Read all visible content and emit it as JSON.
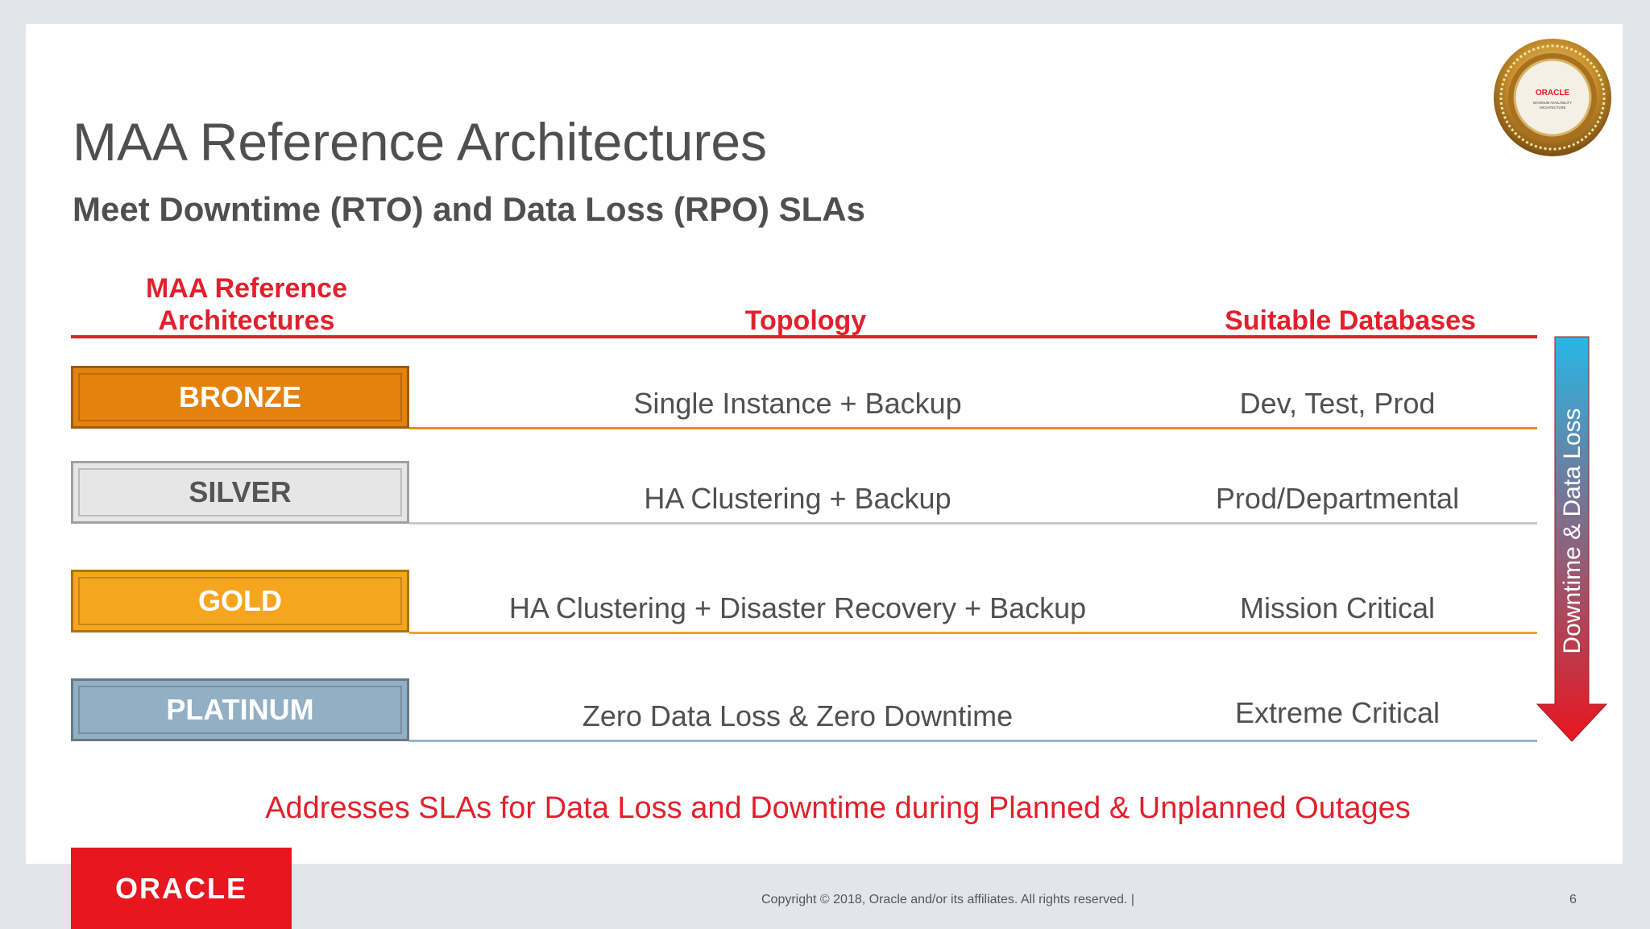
{
  "slide": {
    "title": "MAA Reference Architectures",
    "subtitle": "Meet Downtime (RTO) and Data Loss (RPO) SLAs"
  },
  "badge": {
    "icon": "maa-seal-icon",
    "brand": "ORACLE",
    "line1": "MAXIMUM AVAILABILITY",
    "line2": "ARCHITECTURE"
  },
  "table": {
    "headers": {
      "tier_line1": "MAA Reference",
      "tier_line2": "Architectures",
      "topology": "Topology",
      "databases": "Suitable Databases"
    },
    "rows": [
      {
        "tier": "BRONZE",
        "topology": "Single Instance + Backup",
        "databases": "Dev, Test, Prod",
        "color": "#e4820f",
        "line_color": "#e4960f"
      },
      {
        "tier": "SILVER",
        "topology": "HA Clustering + Backup",
        "databases": "Prod/Departmental",
        "color": "#e6e6e6",
        "line_color": "#c9c9c9"
      },
      {
        "tier": "GOLD",
        "topology": "HA Clustering + Disaster Recovery + Backup",
        "databases": "Mission Critical",
        "color": "#f6a51e",
        "line_color": "#f0a623"
      },
      {
        "tier": "PLATINUM",
        "topology": "Zero Data Loss & Zero Downtime",
        "databases": "Extreme Critical",
        "color": "#93afc4",
        "line_color": "#9cb3c3"
      }
    ]
  },
  "arrow": {
    "label": "Downtime & Data Loss",
    "top_color": "#29b6e6",
    "bottom_color": "#e8161e"
  },
  "footer": {
    "note": "Addresses SLAs for Data Loss and Downtime during Planned & Unplanned Outages",
    "logo": "ORACLE",
    "copyright": "Copyright © 2018, Oracle and/or its affiliates. All rights reserved.  |",
    "page": "6"
  }
}
